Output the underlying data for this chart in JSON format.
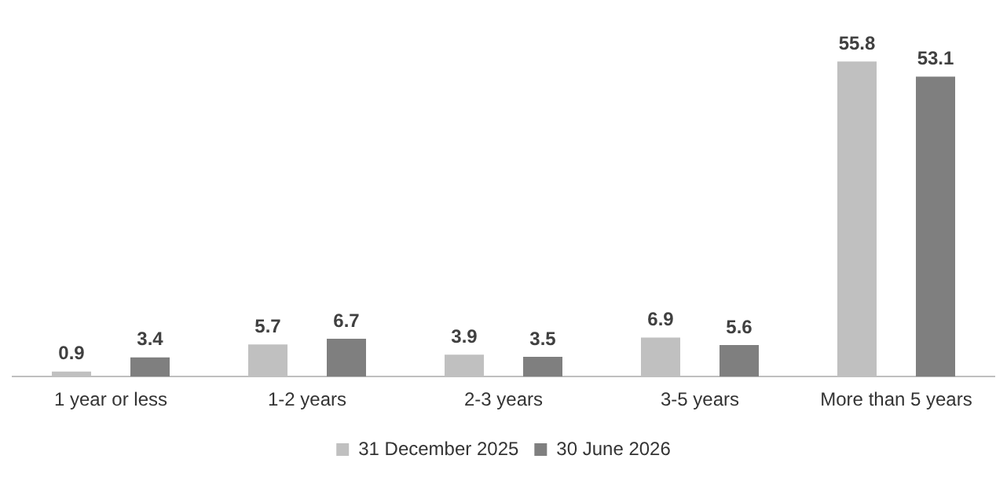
{
  "chart_data": {
    "type": "bar",
    "categories": [
      "1 year or less",
      "1-2 years",
      "2-3 years",
      "3-5 years",
      "More than 5 years"
    ],
    "series": [
      {
        "name": "31 December 2025",
        "color": "#c0c0c0",
        "values": [
          0.9,
          5.7,
          3.9,
          6.9,
          55.8
        ]
      },
      {
        "name": "30 June 2026",
        "color": "#7f7f7f",
        "values": [
          3.4,
          6.7,
          3.5,
          5.6,
          53.1
        ]
      }
    ],
    "data_labels": true,
    "legend": "bottom",
    "grid": false,
    "tick_labels": "x"
  }
}
